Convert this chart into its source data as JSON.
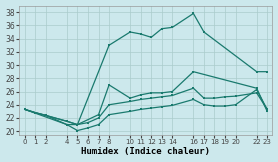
{
  "xlabel": "Humidex (Indice chaleur)",
  "bg_color": "#cce8ec",
  "grid_color": "#aacccc",
  "line_color": "#1a7a6e",
  "xlim": [
    -0.5,
    23.5
  ],
  "ylim": [
    19.5,
    39.0
  ],
  "yticks": [
    20,
    22,
    24,
    26,
    28,
    30,
    32,
    34,
    36,
    38
  ],
  "xtick_labels": [
    "0",
    "1",
    "2",
    "4",
    "5",
    "6",
    "7",
    "8",
    "10",
    "11",
    "12",
    "13",
    "14",
    "16",
    "17",
    "18",
    "19",
    "20",
    "22",
    "23"
  ],
  "xtick_pos": [
    0,
    1,
    2,
    4,
    5,
    6,
    7,
    8,
    10,
    11,
    12,
    13,
    14,
    16,
    17,
    18,
    19,
    20,
    22,
    23
  ],
  "line_top_x": [
    0,
    4,
    5,
    8,
    10,
    11,
    12,
    13,
    14,
    16,
    17,
    22,
    23
  ],
  "line_top_y": [
    23.3,
    21.0,
    21.0,
    33.0,
    35.0,
    34.7,
    34.2,
    35.5,
    35.7,
    37.8,
    35.0,
    29.0,
    29.0
  ],
  "line_2_x": [
    0,
    1,
    4,
    5,
    7,
    8,
    10,
    11,
    12,
    13,
    14,
    16,
    22,
    23
  ],
  "line_2_y": [
    23.3,
    22.8,
    21.5,
    21.0,
    22.5,
    27.0,
    25.0,
    25.5,
    25.8,
    25.8,
    26.0,
    29.0,
    26.5,
    23.0
  ],
  "line_3_x": [
    0,
    1,
    2,
    4,
    5,
    6,
    7,
    8,
    10,
    11,
    12,
    13,
    14,
    16,
    17,
    18,
    19,
    20,
    22,
    23
  ],
  "line_3_y": [
    23.3,
    22.8,
    22.4,
    21.5,
    21.0,
    21.3,
    22.0,
    24.0,
    24.5,
    24.8,
    25.0,
    25.2,
    25.4,
    26.5,
    25.0,
    25.0,
    25.2,
    25.3,
    25.8,
    23.3
  ],
  "line_4_x": [
    0,
    1,
    2,
    4,
    5,
    6,
    7,
    8,
    10,
    11,
    12,
    13,
    14,
    16,
    17,
    18,
    19,
    20,
    22,
    23
  ],
  "line_4_y": [
    23.3,
    22.8,
    22.4,
    21.0,
    20.1,
    20.5,
    21.0,
    22.5,
    23.0,
    23.3,
    23.5,
    23.7,
    23.9,
    24.8,
    24.0,
    23.8,
    23.8,
    24.0,
    26.3,
    23.3
  ],
  "lw": 0.9,
  "ms": 2.0
}
